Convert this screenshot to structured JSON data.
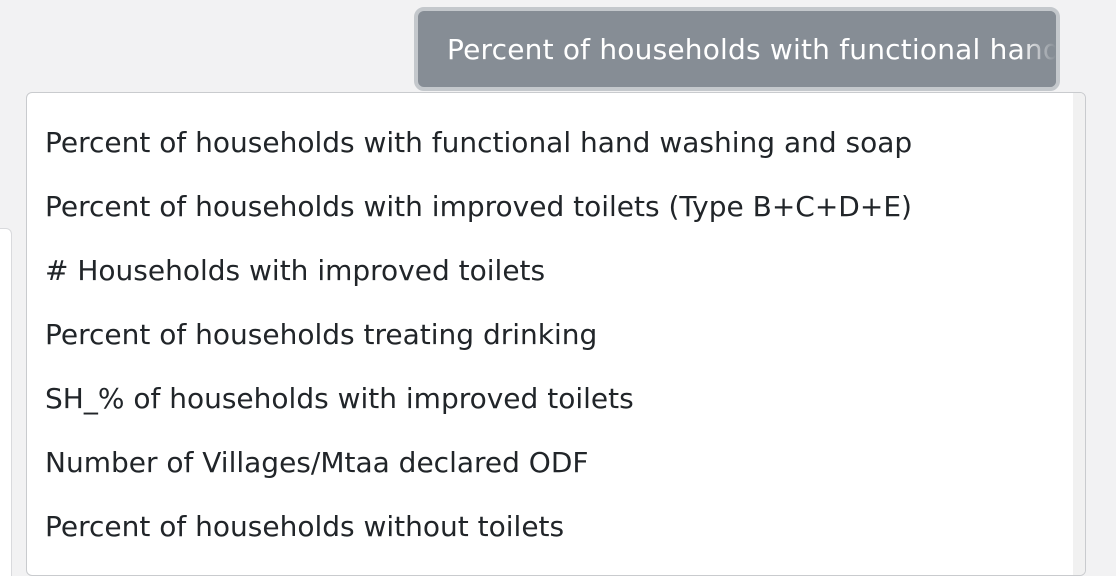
{
  "select": {
    "selected_label": "Percent of households with functional hand washing and soap"
  },
  "dropdown": {
    "options": [
      "Percent of households with functional hand washing and soap",
      "Percent of households with improved toilets (Type B+C+D+E)",
      "# Households with improved toilets",
      "Percent of households treating drinking",
      "SH_% of households with improved toilets",
      "Number of Villages/Mtaa declared ODF",
      "Percent of households without toilets"
    ]
  },
  "colors": {
    "button_bg": "#868d95",
    "menu_bg": "#ffffff",
    "text": "#212529"
  }
}
